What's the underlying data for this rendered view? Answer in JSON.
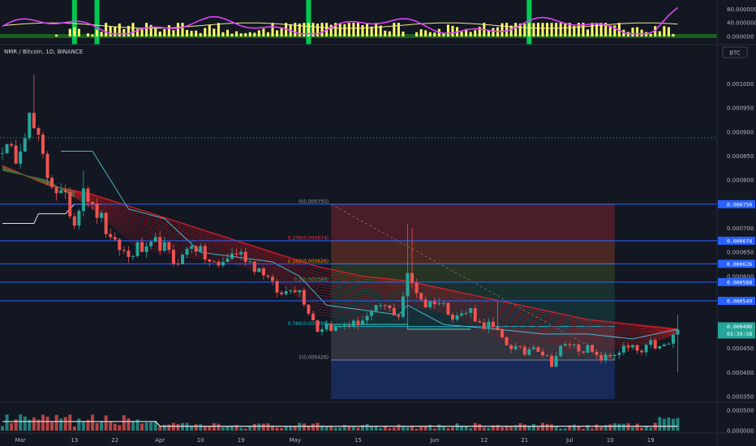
{
  "symbol": {
    "title": "NMR / Bitcoin, 1D, BINANCE",
    "currency_button": "BTC"
  },
  "colors": {
    "background": "#131722",
    "up": "#26a69a",
    "down": "#ef5350",
    "hline": "#2962ff",
    "ribbon_slow": "#e0202a",
    "ribbon_fast_green": "#1f9d45",
    "rsi": "#e040fb",
    "rsi_signal": "#f0e68c",
    "osc_bar": "#ffff66",
    "osc_signal": "#00c853",
    "teal_line": "#4fb0c6",
    "white_line": "#e0e0e0"
  },
  "oscillator_panel": {
    "ticks": [
      "80.000000",
      "40.000000",
      "0.000000"
    ],
    "tick_values": [
      80,
      40,
      0
    ]
  },
  "volume_panel": {
    "ticks": [
      "0.000500",
      "0.000000"
    ],
    "tick_values": [
      0.0005,
      0
    ]
  },
  "chart_data": {
    "type": "candlestick",
    "title": "NMR / Bitcoin, 1D, BINANCE",
    "ylim": [
      0.00034,
      0.00108
    ],
    "y_ticks": [
      "0.001000",
      "0.000950",
      "0.000900",
      "0.000850",
      "0.000800",
      "0.000750",
      "0.000700",
      "0.000650",
      "0.000600",
      "0.000550",
      "0.000500",
      "0.000450",
      "0.000400",
      "0.000350"
    ],
    "y_tick_values": [
      0.001,
      0.00095,
      0.0009,
      0.00085,
      0.0008,
      0.00075,
      0.0007,
      0.00065,
      0.0006,
      0.00055,
      0.0005,
      0.00045,
      0.0004,
      0.00035
    ],
    "x_labels": [
      {
        "label": "Mar",
        "day": 4
      },
      {
        "label": "13",
        "day": 16
      },
      {
        "label": "22",
        "day": 25
      },
      {
        "label": "Apr",
        "day": 35
      },
      {
        "label": "10",
        "day": 44
      },
      {
        "label": "19",
        "day": 53
      },
      {
        "label": "May",
        "day": 65
      },
      {
        "label": "15",
        "day": 79
      },
      {
        "label": "Jun",
        "day": 96
      },
      {
        "label": "12",
        "day": 107
      },
      {
        "label": "21",
        "day": 116
      },
      {
        "label": "Jul",
        "day": 126
      },
      {
        "label": "10",
        "day": 135
      },
      {
        "label": "19",
        "day": 144
      }
    ],
    "price_levels": [
      {
        "value": 0.00075,
        "label": "0.000750"
      },
      {
        "value": 0.000674,
        "label": "0.000674"
      },
      {
        "value": 0.000626,
        "label": "0.000626"
      },
      {
        "value": 0.000588,
        "label": "0.000588"
      },
      {
        "value": 0.000549,
        "label": "0.000549"
      }
    ],
    "dotted_level": 0.000888,
    "fibonacci": {
      "start_day": 73,
      "end_day": 136,
      "levels": [
        {
          "ratio": "0",
          "value": 0.00075,
          "label": "0(0.000750)",
          "color": "#9598a1",
          "fill": "rgba(178,40,51,0.35)"
        },
        {
          "ratio": "0.236",
          "value": 0.000674,
          "label": "0.236(0.000674)",
          "color": "#f23645",
          "fill": "rgba(200,80,40,0.30)"
        },
        {
          "ratio": "0.382",
          "value": 0.000626,
          "label": "0.382(0.000626)",
          "color": "#ff9800",
          "fill": "rgba(90,120,40,0.30)"
        },
        {
          "ratio": "0.5",
          "value": 0.000588,
          "label": "0.5(0.000588)",
          "color": "#4caf50",
          "fill": "rgba(40,120,80,0.28)"
        },
        {
          "ratio": "0.618",
          "value": 0.000549,
          "label": "",
          "color": "#089981",
          "fill": "rgba(30,110,110,0.28)"
        },
        {
          "ratio": "0.786",
          "value": 0.000496,
          "label": "0.786(0.000496)",
          "color": "#00bcd4",
          "fill": "rgba(120,120,130,0.30)"
        },
        {
          "ratio": "1",
          "value": 0.000426,
          "label": "1(0.000426)",
          "color": "#9598a1",
          "fill": "rgba(41,98,255,0.25)"
        }
      ],
      "extension_bottom": 0.000345
    },
    "last_price": {
      "value": 0.000496,
      "label": "0.000496",
      "countdown": "03:39:58"
    },
    "anchors": [
      [
        0,
        0.00087
      ],
      [
        3,
        0.00085
      ],
      [
        6,
        0.00093
      ],
      [
        8,
        0.00088
      ],
      [
        10,
        0.00081
      ],
      [
        12,
        0.00078
      ],
      [
        14,
        0.00076
      ],
      [
        16,
        0.00071
      ],
      [
        18,
        0.00079
      ],
      [
        20,
        0.00074
      ],
      [
        22,
        0.00072
      ],
      [
        24,
        0.00067
      ],
      [
        26,
        0.00066
      ],
      [
        28,
        0.00064
      ],
      [
        30,
        0.00066
      ],
      [
        32,
        0.00065
      ],
      [
        34,
        0.00067
      ],
      [
        36,
        0.00066
      ],
      [
        38,
        0.00063
      ],
      [
        40,
        0.00064
      ],
      [
        42,
        0.00067
      ],
      [
        44,
        0.00065
      ],
      [
        46,
        0.00063
      ],
      [
        48,
        0.00062
      ],
      [
        50,
        0.00064
      ],
      [
        52,
        0.00065
      ],
      [
        54,
        0.00064
      ],
      [
        56,
        0.00062
      ],
      [
        58,
        0.00061
      ],
      [
        60,
        0.00058
      ],
      [
        62,
        0.00056
      ],
      [
        64,
        0.00058
      ],
      [
        66,
        0.00057
      ],
      [
        68,
        0.00053
      ],
      [
        70,
        0.00049
      ],
      [
        72,
        0.0005
      ],
      [
        74,
        0.00049
      ],
      [
        76,
        0.0005
      ],
      [
        78,
        0.0005
      ],
      [
        80,
        0.00051
      ],
      [
        82,
        0.00052
      ],
      [
        84,
        0.00054
      ],
      [
        86,
        0.00053
      ],
      [
        88,
        0.00052
      ],
      [
        90,
        0.0006
      ],
      [
        92,
        0.00057
      ],
      [
        94,
        0.00054
      ],
      [
        96,
        0.00055
      ],
      [
        98,
        0.00054
      ],
      [
        100,
        0.00052
      ],
      [
        102,
        0.00052
      ],
      [
        104,
        0.00053
      ],
      [
        106,
        0.0005
      ],
      [
        108,
        0.0005
      ],
      [
        110,
        0.00048
      ],
      [
        112,
        0.00046
      ],
      [
        114,
        0.00045
      ],
      [
        116,
        0.00044
      ],
      [
        118,
        0.00046
      ],
      [
        120,
        0.00044
      ],
      [
        122,
        0.00042
      ],
      [
        124,
        0.00045
      ],
      [
        126,
        0.00046
      ],
      [
        128,
        0.00045
      ],
      [
        130,
        0.00045
      ],
      [
        132,
        0.00043
      ],
      [
        134,
        0.00043
      ],
      [
        136,
        0.00044
      ],
      [
        138,
        0.00045
      ],
      [
        140,
        0.00045
      ],
      [
        142,
        0.00044
      ],
      [
        144,
        0.00046
      ],
      [
        146,
        0.00045
      ],
      [
        148,
        0.00046
      ],
      [
        150,
        0.00049
      ]
    ],
    "spikes": [
      [
        7,
        0.00102
      ],
      [
        18,
        0.00082
      ],
      [
        90,
        0.00071
      ],
      [
        91,
        0.0007
      ],
      [
        110,
        0.00055
      ],
      [
        150,
        0.00052
      ]
    ],
    "dips": [
      [
        90,
        0.00049
      ],
      [
        150,
        0.0004
      ]
    ],
    "overlays": {
      "teal_line": [
        [
          13,
          0.00086
        ],
        [
          20,
          0.00086
        ],
        [
          28,
          0.00074
        ],
        [
          36,
          0.00072
        ],
        [
          44,
          0.00065
        ],
        [
          52,
          0.00064
        ],
        [
          60,
          0.00063
        ],
        [
          66,
          0.0006
        ],
        [
          72,
          0.00054
        ],
        [
          80,
          0.00053
        ],
        [
          88,
          0.00052
        ],
        [
          90,
          0.00054
        ],
        [
          98,
          0.0005
        ],
        [
          110,
          0.00049
        ],
        [
          120,
          0.00048
        ],
        [
          130,
          0.00048
        ],
        [
          140,
          0.00047
        ],
        [
          150,
          0.00049
        ]
      ],
      "white_line": [
        [
          0,
          0.00071
        ],
        [
          7,
          0.00071
        ],
        [
          8,
          0.00073
        ],
        [
          14,
          0.00073
        ],
        [
          16,
          0.00075
        ],
        [
          22,
          0.00075
        ]
      ],
      "green_step": [
        [
          72,
          0.0005
        ],
        [
          90,
          0.0005
        ],
        [
          90,
          0.00049
        ],
        [
          104,
          0.00049
        ]
      ],
      "brown_dashed": [
        [
          73,
          0.00075
        ],
        [
          136,
          0.000426
        ]
      ]
    },
    "ribbon": {
      "fast_start": [
        [
          0,
          0.00082
        ],
        [
          10,
          0.0008
        ],
        [
          20,
          0.00074
        ],
        [
          30,
          0.00066
        ],
        [
          40,
          0.00064
        ],
        [
          50,
          0.00063
        ],
        [
          60,
          0.0006
        ],
        [
          70,
          0.00052
        ],
        [
          80,
          0.00051
        ],
        [
          90,
          0.00054
        ],
        [
          100,
          0.00052
        ],
        [
          110,
          0.00047
        ],
        [
          120,
          0.00044
        ],
        [
          130,
          0.00045
        ],
        [
          140,
          0.00045
        ],
        [
          150,
          0.00048
        ]
      ],
      "slow_end": [
        [
          0,
          0.00083
        ],
        [
          10,
          0.00079
        ],
        [
          20,
          0.00077
        ],
        [
          30,
          0.00074
        ],
        [
          40,
          0.00071
        ],
        [
          50,
          0.00068
        ],
        [
          60,
          0.00065
        ],
        [
          70,
          0.00062
        ],
        [
          80,
          0.0006
        ],
        [
          90,
          0.00059
        ],
        [
          100,
          0.00057
        ],
        [
          110,
          0.00055
        ],
        [
          120,
          0.00053
        ],
        [
          130,
          0.00051
        ],
        [
          140,
          0.0005
        ],
        [
          150,
          0.00049
        ]
      ]
    }
  }
}
